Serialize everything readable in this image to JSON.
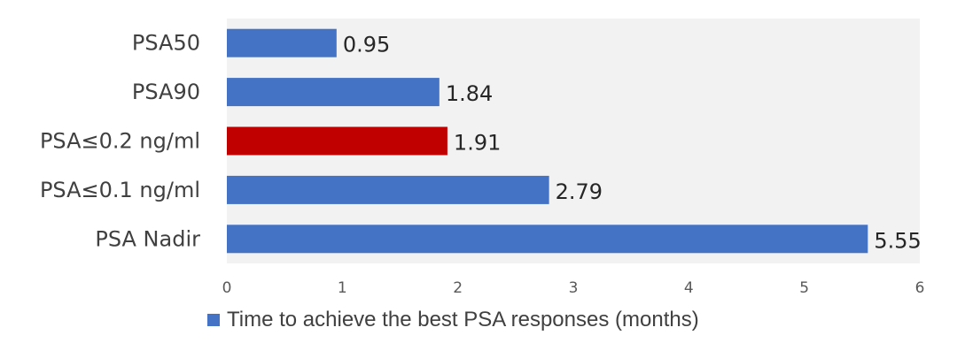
{
  "chart_data": {
    "type": "bar",
    "orientation": "horizontal",
    "categories": [
      "PSA50",
      "PSA90",
      "PSA≤0.2 ng/ml",
      "PSA≤0.1 ng/ml",
      "PSA Nadir"
    ],
    "series": [
      {
        "name": "Time to achieve the best PSA responses (months)",
        "values": [
          0.95,
          1.84,
          1.91,
          2.79,
          5.55
        ],
        "value_labels": [
          "0.95",
          "1.84",
          "1.91",
          "2.79",
          "5.55"
        ],
        "color": "#4472C4"
      }
    ],
    "highlight": {
      "category": "PSA≤0.2 ng/ml",
      "color": "#C00000"
    },
    "xlim": [
      0,
      6
    ],
    "xticks": [
      0,
      1,
      2,
      3,
      4,
      5,
      6
    ],
    "title": "",
    "xlabel": "",
    "ylabel": "",
    "plot_background": "#F2F2F2",
    "grid": false,
    "legend_position": "bottom"
  }
}
